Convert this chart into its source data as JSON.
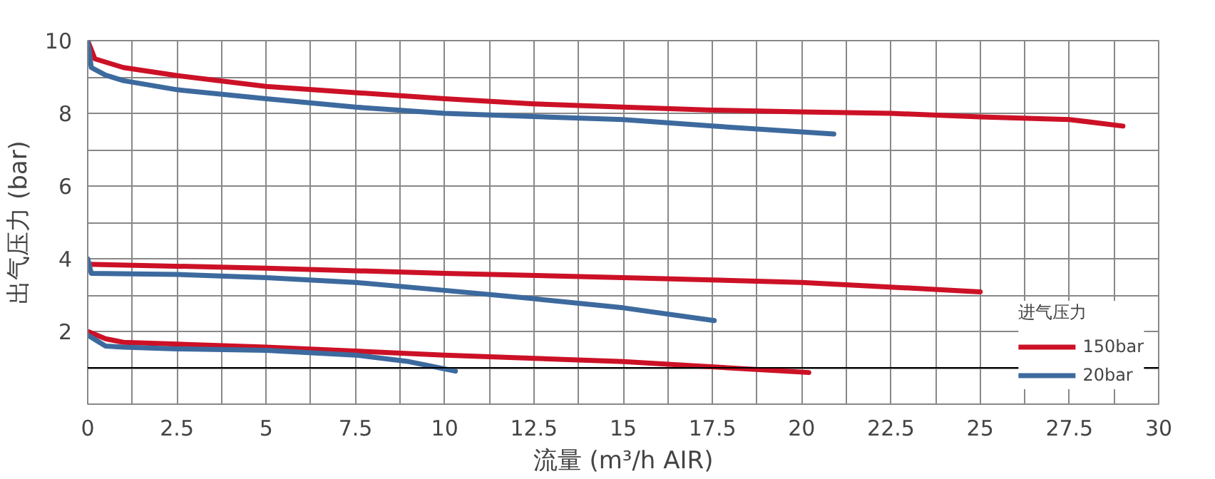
{
  "chart_data": {
    "type": "line",
    "xlabel": "流量 (m³/h AIR)",
    "ylabel": "出气压力 (bar)",
    "legend_title": "进气压力",
    "legend": "bottom right",
    "grid": true,
    "line_style": "solid",
    "marker": "none",
    "xlim": [
      0,
      30
    ],
    "ylim": [
      0,
      10
    ],
    "xticks": [
      0,
      {
        "value": 1.25,
        "label": null
      },
      2.5,
      {
        "value": 3.75,
        "label": null
      },
      5,
      {
        "value": 6.25,
        "label": null
      },
      7.5,
      {
        "value": 8.75,
        "label": null
      },
      10,
      {
        "value": 11.25,
        "label": null
      },
      12.5,
      {
        "value": 13.75,
        "label": null
      },
      15,
      {
        "value": 16.25,
        "label": null
      },
      17.5,
      {
        "value": 18.75,
        "label": null
      },
      20,
      {
        "value": 21.25,
        "label": null
      },
      22.5,
      {
        "value": 23.75,
        "label": null
      },
      25,
      {
        "value": 26.25,
        "label": null
      },
      27.5,
      {
        "value": 28.75,
        "label": null
      },
      30
    ],
    "yticks": [
      {
        "value": 1,
        "label": null
      },
      2,
      {
        "value": 3,
        "label": null
      },
      4,
      {
        "value": 5,
        "label": null
      },
      6,
      {
        "value": 7,
        "label": null
      },
      8,
      {
        "value": 9,
        "label": null
      },
      10
    ],
    "ref_lines": [
      {
        "axis": "y",
        "value": 1,
        "label": null,
        "color": "#000000"
      }
    ],
    "series": [
      {
        "name": "150bar",
        "color": "#cc1126",
        "x": [
          0,
          0.2,
          1,
          2.5,
          5,
          7.5,
          10,
          12.5,
          15,
          17.5,
          20,
          22.5,
          25,
          27.5,
          29
        ],
        "values": [
          10,
          9.5,
          9.26,
          9.04,
          8.74,
          8.57,
          8.4,
          8.26,
          8.17,
          8.09,
          8.04,
          8.0,
          7.9,
          7.83,
          7.65
        ]
      },
      {
        "name": "20bar",
        "color": "#3d6a9e",
        "x": [
          0,
          0.1,
          0.5,
          1,
          2.5,
          5,
          7.5,
          10,
          12.5,
          15,
          17.5,
          20.9
        ],
        "values": [
          10,
          9.26,
          9.05,
          8.9,
          8.65,
          8.4,
          8.17,
          8.0,
          7.91,
          7.83,
          7.65,
          7.43
        ]
      },
      {
        "color": "#cc1126",
        "x": [
          0,
          5,
          10,
          15,
          20,
          25
        ],
        "values": [
          3.85,
          3.74,
          3.6,
          3.48,
          3.35,
          3.09
        ]
      },
      {
        "color": "#3d6a9e",
        "x": [
          0,
          0.1,
          2.5,
          5,
          7.5,
          10,
          12.5,
          15,
          17.55
        ],
        "values": [
          4.0,
          3.6,
          3.57,
          3.48,
          3.35,
          3.13,
          2.9,
          2.65,
          2.3
        ]
      },
      {
        "color": "#cc1126",
        "x": [
          0,
          0.5,
          1,
          5,
          10,
          15,
          20.2
        ],
        "values": [
          2.0,
          1.8,
          1.7,
          1.57,
          1.35,
          1.17,
          0.87
        ]
      },
      {
        "color": "#3d6a9e",
        "x": [
          0,
          0.5,
          1,
          2.5,
          5,
          7.5,
          9,
          10.3
        ],
        "values": [
          1.9,
          1.6,
          1.57,
          1.52,
          1.48,
          1.35,
          1.17,
          0.91
        ]
      }
    ]
  }
}
